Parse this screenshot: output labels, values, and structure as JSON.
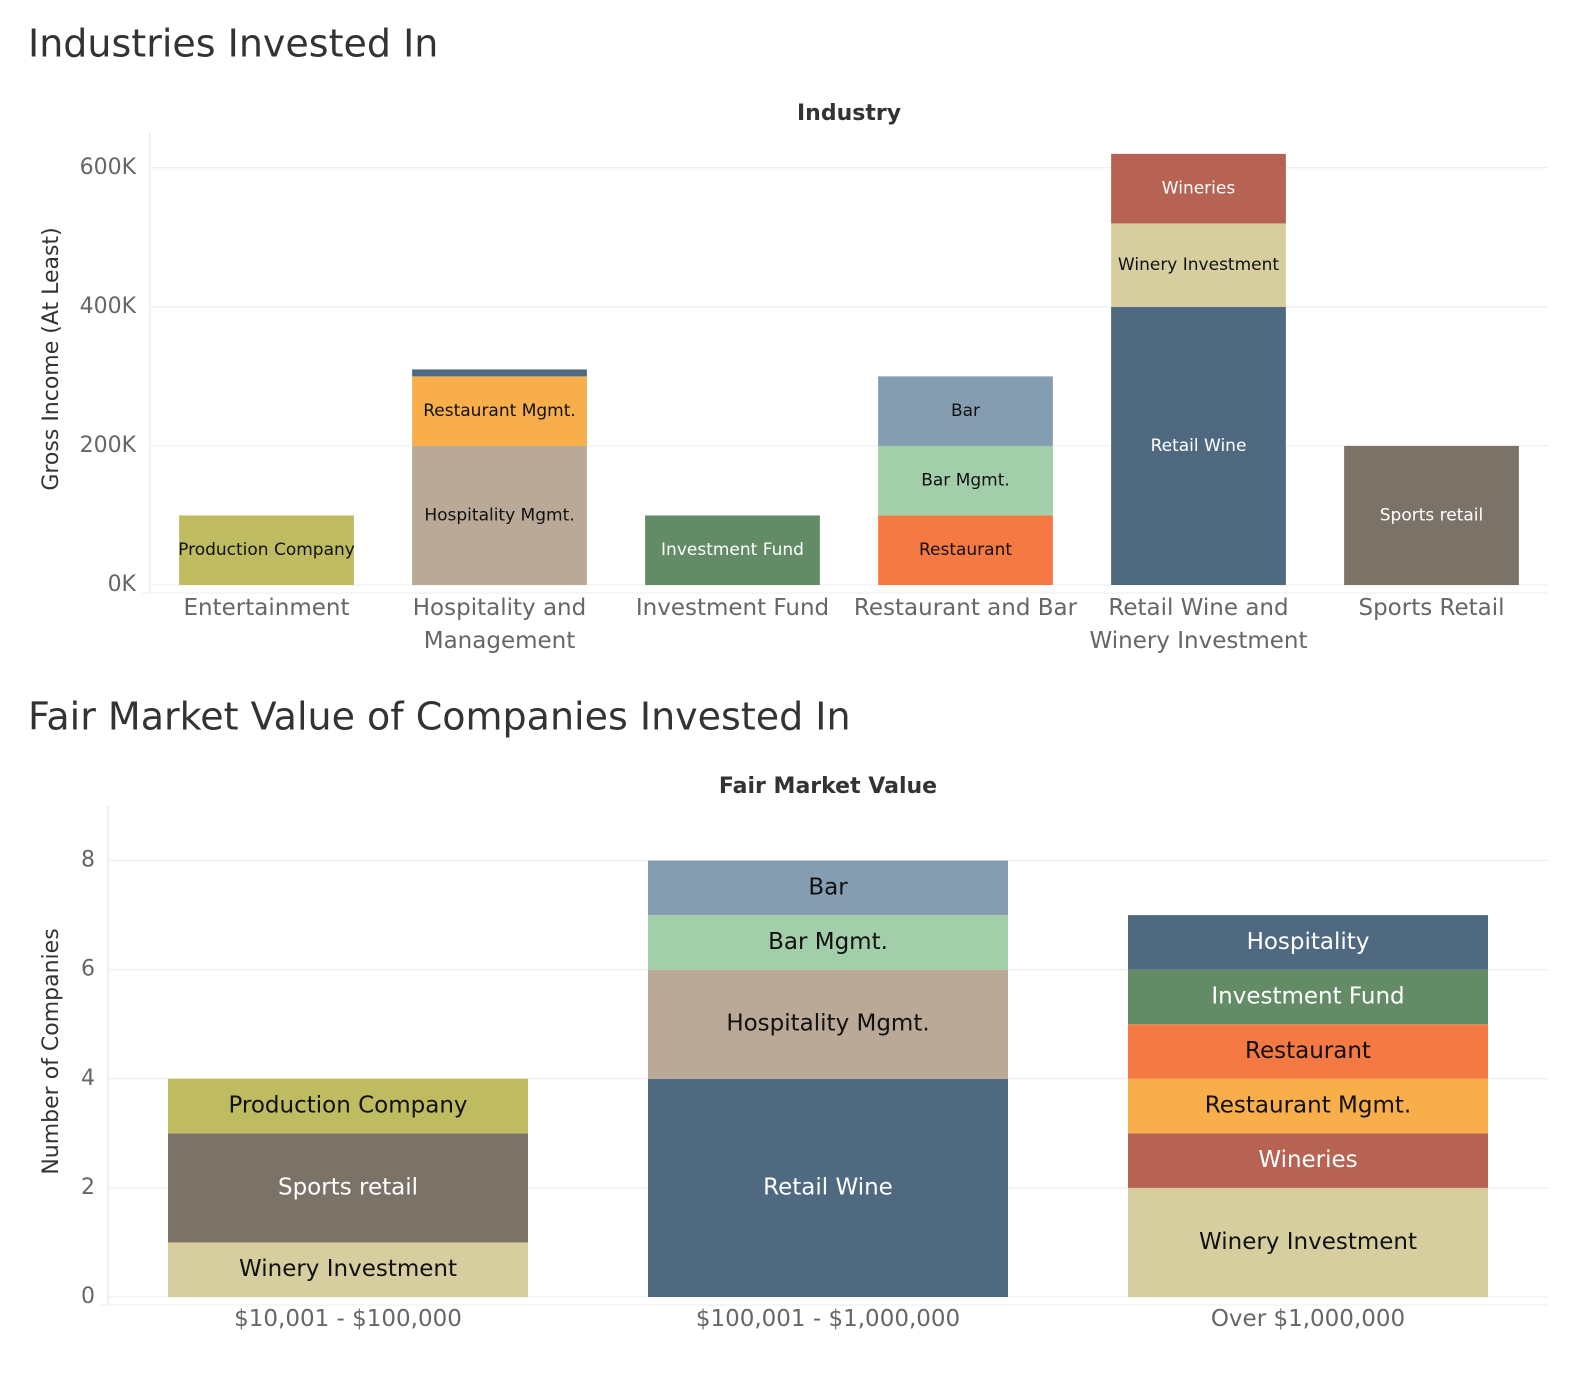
{
  "chart_data": [
    {
      "type": "bar",
      "stacked": true,
      "title": "Industries Invested In",
      "subtitle": "Industry",
      "y_label": "Gross Income (At Least)",
      "categories": [
        "Entertainment",
        "Hospitality and Management",
        "Investment Fund",
        "Restaurant and Bar",
        "Retail Wine and Winery Investment",
        "Sports Retail"
      ],
      "series": [
        {
          "name": "Production Company",
          "color": "#bfbb60",
          "values": [
            100000,
            null,
            null,
            null,
            null,
            null
          ]
        },
        {
          "name": "Hospitality Mgmt.",
          "color": "#b9a996",
          "values": [
            null,
            200000,
            null,
            null,
            null,
            null
          ]
        },
        {
          "name": "Restaurant Mgmt.",
          "color": "#f8ae4a",
          "values": [
            null,
            100000,
            null,
            null,
            null,
            null
          ]
        },
        {
          "name": "Hospitality",
          "color": "#4f6980",
          "values": [
            null,
            10000,
            null,
            null,
            null,
            null
          ]
        },
        {
          "name": "Investment Fund",
          "color": "#638b66",
          "values": [
            null,
            null,
            100000,
            null,
            null,
            null
          ]
        },
        {
          "name": "Restaurant",
          "color": "#f47942",
          "values": [
            null,
            null,
            null,
            100000,
            null,
            null
          ]
        },
        {
          "name": "Bar Mgmt.",
          "color": "#a2ceaa",
          "values": [
            null,
            null,
            null,
            100000,
            null,
            null
          ]
        },
        {
          "name": "Bar",
          "color": "#849db1",
          "values": [
            null,
            null,
            null,
            100000,
            null,
            null
          ]
        },
        {
          "name": "Retail Wine",
          "color": "#4f6980",
          "values": [
            null,
            null,
            null,
            null,
            400000,
            null
          ]
        },
        {
          "name": "Winery Investment",
          "color": "#d7ce9f",
          "values": [
            null,
            null,
            null,
            null,
            120000,
            null
          ]
        },
        {
          "name": "Wineries",
          "color": "#b66353",
          "values": [
            null,
            null,
            null,
            null,
            100000,
            null
          ]
        },
        {
          "name": "Sports retail",
          "color": "#7b7268",
          "values": [
            null,
            null,
            null,
            null,
            null,
            200000
          ]
        }
      ],
      "ylim": [
        0,
        650000
      ],
      "yticks": [
        {
          "value": 0,
          "label": "0K"
        },
        {
          "value": 200000,
          "label": "200K"
        },
        {
          "value": 400000,
          "label": "400K"
        },
        {
          "value": 600000,
          "label": "600K"
        }
      ],
      "grid": true
    },
    {
      "type": "bar",
      "stacked": true,
      "title": "Fair Market Value of Companies Invested In",
      "subtitle": "Fair Market Value",
      "y_label": "Number of Companies",
      "categories": [
        "$10,001 - $100,000",
        "$100,001 - $1,000,000",
        "Over $1,000,000"
      ],
      "series": [
        {
          "name": "Winery Investment",
          "color": "#d7ce9f",
          "values": [
            1,
            null,
            2
          ]
        },
        {
          "name": "Sports retail",
          "color": "#7b7268",
          "values": [
            2,
            null,
            null
          ]
        },
        {
          "name": "Production Company",
          "color": "#bfbb60",
          "values": [
            1,
            null,
            null
          ]
        },
        {
          "name": "Retail Wine",
          "color": "#4f6980",
          "values": [
            null,
            4,
            null
          ]
        },
        {
          "name": "Hospitality Mgmt.",
          "color": "#b9a996",
          "values": [
            null,
            2,
            null
          ]
        },
        {
          "name": "Bar Mgmt.",
          "color": "#a2ceaa",
          "values": [
            null,
            1,
            null
          ]
        },
        {
          "name": "Bar",
          "color": "#849db1",
          "values": [
            null,
            1,
            null
          ]
        },
        {
          "name": "Wineries",
          "color": "#b66353",
          "values": [
            null,
            null,
            1
          ]
        },
        {
          "name": "Restaurant Mgmt.",
          "color": "#f8ae4a",
          "values": [
            null,
            null,
            1
          ]
        },
        {
          "name": "Restaurant",
          "color": "#f47942",
          "values": [
            null,
            null,
            1
          ]
        },
        {
          "name": "Investment Fund",
          "color": "#638b66",
          "values": [
            null,
            null,
            1
          ]
        },
        {
          "name": "Hospitality",
          "color": "#4f6980",
          "values": [
            null,
            null,
            1
          ]
        }
      ],
      "ylim": [
        0,
        9
      ],
      "yticks": [
        0,
        2,
        4,
        6,
        8
      ],
      "grid": true
    }
  ]
}
